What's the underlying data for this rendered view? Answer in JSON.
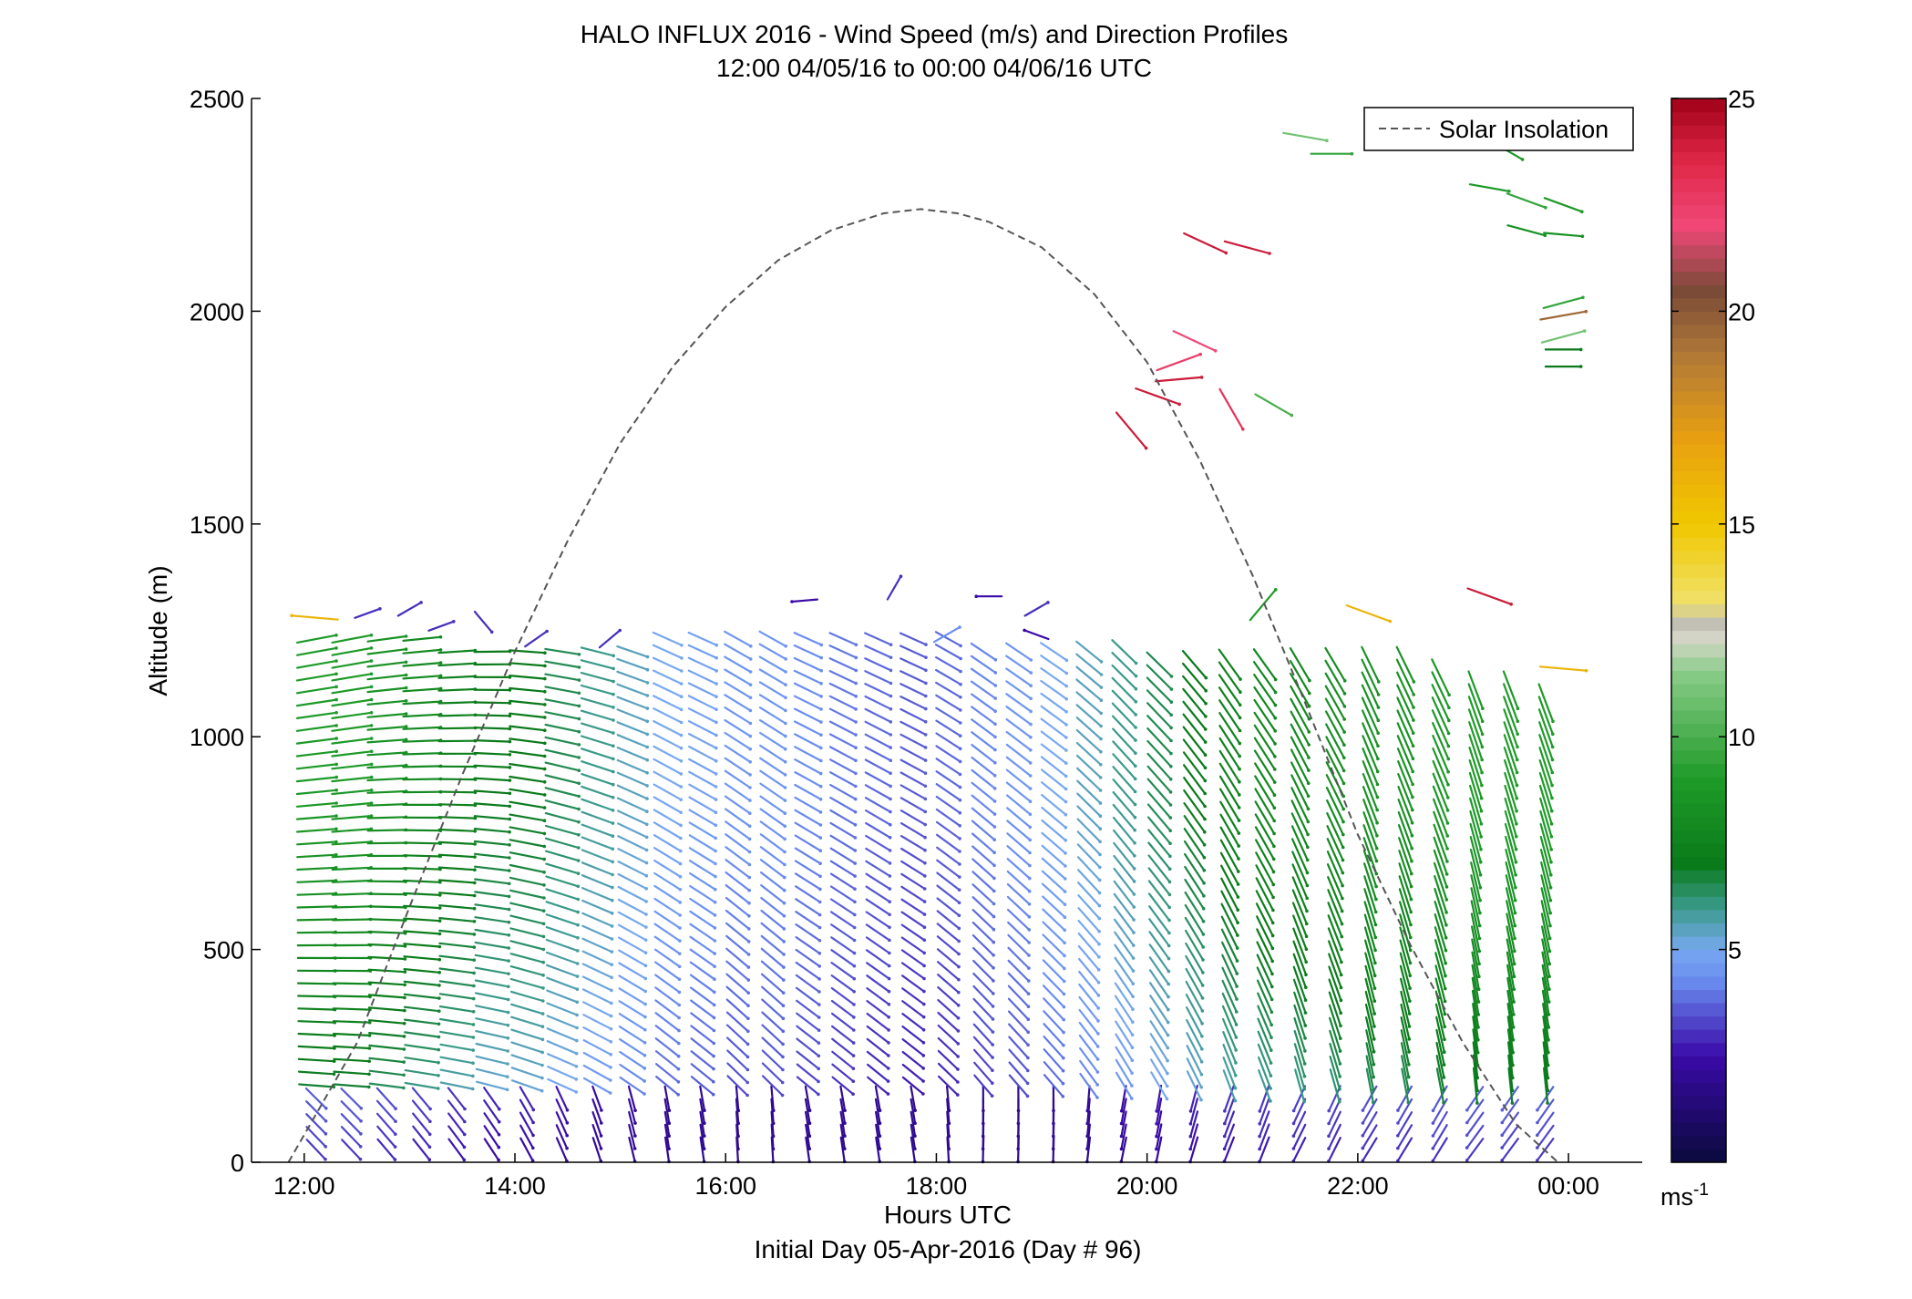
{
  "chart_data": {
    "type": "scatter",
    "title": "HALO INFLUX 2016 - Wind Speed (m/s) and Direction Profiles",
    "subtitle": "12:00 04/05/16 to 00:00 04/06/16  UTC",
    "xlabel": "Hours UTC",
    "xlabel2": "Initial Day 05-Apr-2016 (Day # 96)",
    "ylabel": "Altitude (m)",
    "xlim": [
      11.5,
      24.7
    ],
    "ylim": [
      0,
      2500
    ],
    "x_ticks": [
      12,
      14,
      16,
      18,
      20,
      22,
      24
    ],
    "x_tick_labels": [
      "12:00",
      "14:00",
      "16:00",
      "18:00",
      "20:00",
      "22:00",
      "00:00"
    ],
    "y_ticks": [
      0,
      500,
      1000,
      1500,
      2000,
      2500
    ],
    "y_tick_labels": [
      "0",
      "500",
      "1000",
      "1500",
      "2000",
      "2500"
    ],
    "legend": {
      "placement": "top-right",
      "entries": [
        {
          "name": "Solar Insolation",
          "style": "dashed",
          "color": "#555555"
        }
      ]
    },
    "colorbar": {
      "unit_label": "ms",
      "unit_exponent": "-1",
      "range": [
        0,
        25
      ],
      "ticks": [
        5,
        10,
        15,
        20,
        25
      ],
      "tick_labels": [
        "5",
        "10",
        "15",
        "20",
        "25"
      ],
      "stops": [
        {
          "v": 0,
          "color": "#0a0a3c"
        },
        {
          "v": 2.5,
          "color": "#3a0aa8"
        },
        {
          "v": 4.3,
          "color": "#6a8ef0"
        },
        {
          "v": 5,
          "color": "#78a8f0"
        },
        {
          "v": 6,
          "color": "#3a9a8a"
        },
        {
          "v": 7,
          "color": "#0a7a1a"
        },
        {
          "v": 9,
          "color": "#1e9a28"
        },
        {
          "v": 11.5,
          "color": "#88cc88"
        },
        {
          "v": 12.3,
          "color": "#d8d8c8"
        },
        {
          "v": 12.6,
          "color": "#bdbdbd"
        },
        {
          "v": 13.2,
          "color": "#f0e068"
        },
        {
          "v": 15,
          "color": "#f0c800"
        },
        {
          "v": 17,
          "color": "#e8a010"
        },
        {
          "v": 19,
          "color": "#b07838"
        },
        {
          "v": 20.5,
          "color": "#7a4a38"
        },
        {
          "v": 22,
          "color": "#f04878"
        },
        {
          "v": 23.5,
          "color": "#e02848"
        },
        {
          "v": 25,
          "color": "#a00018"
        }
      ]
    },
    "solar_insolation": {
      "x": [
        11.85,
        12.5,
        13.0,
        13.5,
        14.0,
        14.5,
        15.0,
        15.5,
        16.0,
        16.5,
        17.0,
        17.5,
        17.85,
        18.2,
        18.5,
        19.0,
        19.5,
        20.0,
        20.5,
        21.0,
        21.5,
        22.0,
        22.5,
        23.0,
        23.5,
        23.9
      ],
      "y": [
        0,
        280,
        600,
        910,
        1200,
        1460,
        1690,
        1870,
        2010,
        2120,
        2190,
        2230,
        2240,
        2230,
        2210,
        2150,
        2040,
        1880,
        1650,
        1380,
        1080,
        770,
        510,
        280,
        90,
        0
      ]
    },
    "wind_profiles": {
      "times": [
        12.1,
        12.433,
        12.767,
        13.1,
        13.433,
        13.767,
        14.1,
        14.433,
        14.767,
        15.1,
        15.433,
        15.767,
        16.1,
        16.433,
        16.767,
        17.1,
        17.433,
        17.767,
        18.1,
        18.433,
        18.767,
        19.1,
        19.433,
        19.767,
        20.1,
        20.433,
        20.767,
        21.1,
        21.433,
        21.767,
        22.1,
        22.433,
        22.767,
        23.1,
        23.433,
        23.767
      ],
      "altitude_step_m": 30,
      "min_altitude_m": 30,
      "top_altitude_m": [
        1250,
        1250,
        1250,
        1250,
        1220,
        1210,
        1210,
        1210,
        1210,
        1210,
        1230,
        1240,
        1240,
        1240,
        1240,
        1240,
        1240,
        1240,
        1240,
        1200,
        1200,
        1200,
        1200,
        1200,
        1190,
        1190,
        1190,
        1190,
        1190,
        1190,
        1180,
        1170,
        1150,
        1130,
        1110,
        1100
      ],
      "direction_deg": [
        265,
        265,
        268,
        270,
        272,
        275,
        280,
        285,
        290,
        295,
        300,
        300,
        305,
        305,
        300,
        300,
        300,
        300,
        305,
        310,
        310,
        310,
        315,
        320,
        320,
        325,
        330,
        330,
        335,
        335,
        340,
        340,
        340,
        345,
        345,
        345
      ],
      "speed_ms": [
        9.0,
        9.0,
        8.5,
        8.0,
        7.5,
        7.0,
        7.0,
        6.5,
        6.0,
        5.5,
        5.0,
        4.8,
        4.5,
        4.5,
        4.3,
        4.0,
        3.8,
        3.6,
        3.8,
        4.2,
        4.5,
        5.0,
        5.5,
        6.0,
        6.5,
        7.0,
        7.5,
        7.8,
        8.0,
        8.2,
        8.5,
        8.5,
        8.8,
        9.0,
        9.0,
        9.0
      ]
    },
    "upper_level_barbs": [
      {
        "x": 12.1,
        "y": 1280,
        "dir": 95,
        "speed": 16
      },
      {
        "x": 12.6,
        "y": 1290,
        "dir": 250,
        "speed": 3
      },
      {
        "x": 13.0,
        "y": 1300,
        "dir": 240,
        "speed": 3
      },
      {
        "x": 13.3,
        "y": 1260,
        "dir": 250,
        "speed": 3
      },
      {
        "x": 13.7,
        "y": 1270,
        "dir": 320,
        "speed": 3
      },
      {
        "x": 14.2,
        "y": 1230,
        "dir": 235,
        "speed": 3
      },
      {
        "x": 14.9,
        "y": 1230,
        "dir": 230,
        "speed": 3
      },
      {
        "x": 16.75,
        "y": 1320,
        "dir": 85,
        "speed": 2.5
      },
      {
        "x": 17.6,
        "y": 1350,
        "dir": 210,
        "speed": 3
      },
      {
        "x": 18.1,
        "y": 1240,
        "dir": 240,
        "speed": 4.3
      },
      {
        "x": 18.5,
        "y": 1330,
        "dir": 90,
        "speed": 2.5
      },
      {
        "x": 18.95,
        "y": 1300,
        "dir": 240,
        "speed": 3
      },
      {
        "x": 18.95,
        "y": 1240,
        "dir": 110,
        "speed": 2.5
      },
      {
        "x": 19.85,
        "y": 1720,
        "dir": 320,
        "speed": 24
      },
      {
        "x": 20.1,
        "y": 1800,
        "dir": 290,
        "speed": 24
      },
      {
        "x": 20.3,
        "y": 1880,
        "dir": 250,
        "speed": 22.5
      },
      {
        "x": 20.3,
        "y": 1840,
        "dir": 265,
        "speed": 24
      },
      {
        "x": 20.45,
        "y": 1930,
        "dir": 295,
        "speed": 22
      },
      {
        "x": 20.55,
        "y": 2160,
        "dir": 295,
        "speed": 24
      },
      {
        "x": 20.8,
        "y": 1770,
        "dir": 330,
        "speed": 23
      },
      {
        "x": 20.95,
        "y": 2150,
        "dir": 285,
        "speed": 24
      },
      {
        "x": 21.2,
        "y": 1780,
        "dir": 300,
        "speed": 10
      },
      {
        "x": 21.1,
        "y": 1310,
        "dir": 220,
        "speed": 9
      },
      {
        "x": 21.5,
        "y": 2410,
        "dir": 280,
        "speed": 11
      },
      {
        "x": 21.75,
        "y": 2370,
        "dir": 270,
        "speed": 9.5
      },
      {
        "x": 22.1,
        "y": 1290,
        "dir": 290,
        "speed": 16
      },
      {
        "x": 23.25,
        "y": 2290,
        "dir": 280,
        "speed": 9
      },
      {
        "x": 23.4,
        "y": 2380,
        "dir": 300,
        "speed": 9
      },
      {
        "x": 23.25,
        "y": 1330,
        "dir": 290,
        "speed": 24
      },
      {
        "x": 23.6,
        "y": 2260,
        "dir": 290,
        "speed": 9.5
      },
      {
        "x": 23.6,
        "y": 2190,
        "dir": 285,
        "speed": 8.5
      },
      {
        "x": 23.95,
        "y": 2250,
        "dir": 290,
        "speed": 9
      },
      {
        "x": 23.95,
        "y": 2180,
        "dir": 275,
        "speed": 8.5
      },
      {
        "x": 23.95,
        "y": 2020,
        "dir": 255,
        "speed": 9.5
      },
      {
        "x": 23.95,
        "y": 1990,
        "dir": 260,
        "speed": 19.5
      },
      {
        "x": 23.95,
        "y": 1940,
        "dir": 255,
        "speed": 11
      },
      {
        "x": 23.95,
        "y": 1910,
        "dir": 270,
        "speed": 7
      },
      {
        "x": 23.95,
        "y": 1870,
        "dir": 270,
        "speed": 7
      },
      {
        "x": 23.95,
        "y": 1160,
        "dir": 275,
        "speed": 16
      }
    ]
  }
}
